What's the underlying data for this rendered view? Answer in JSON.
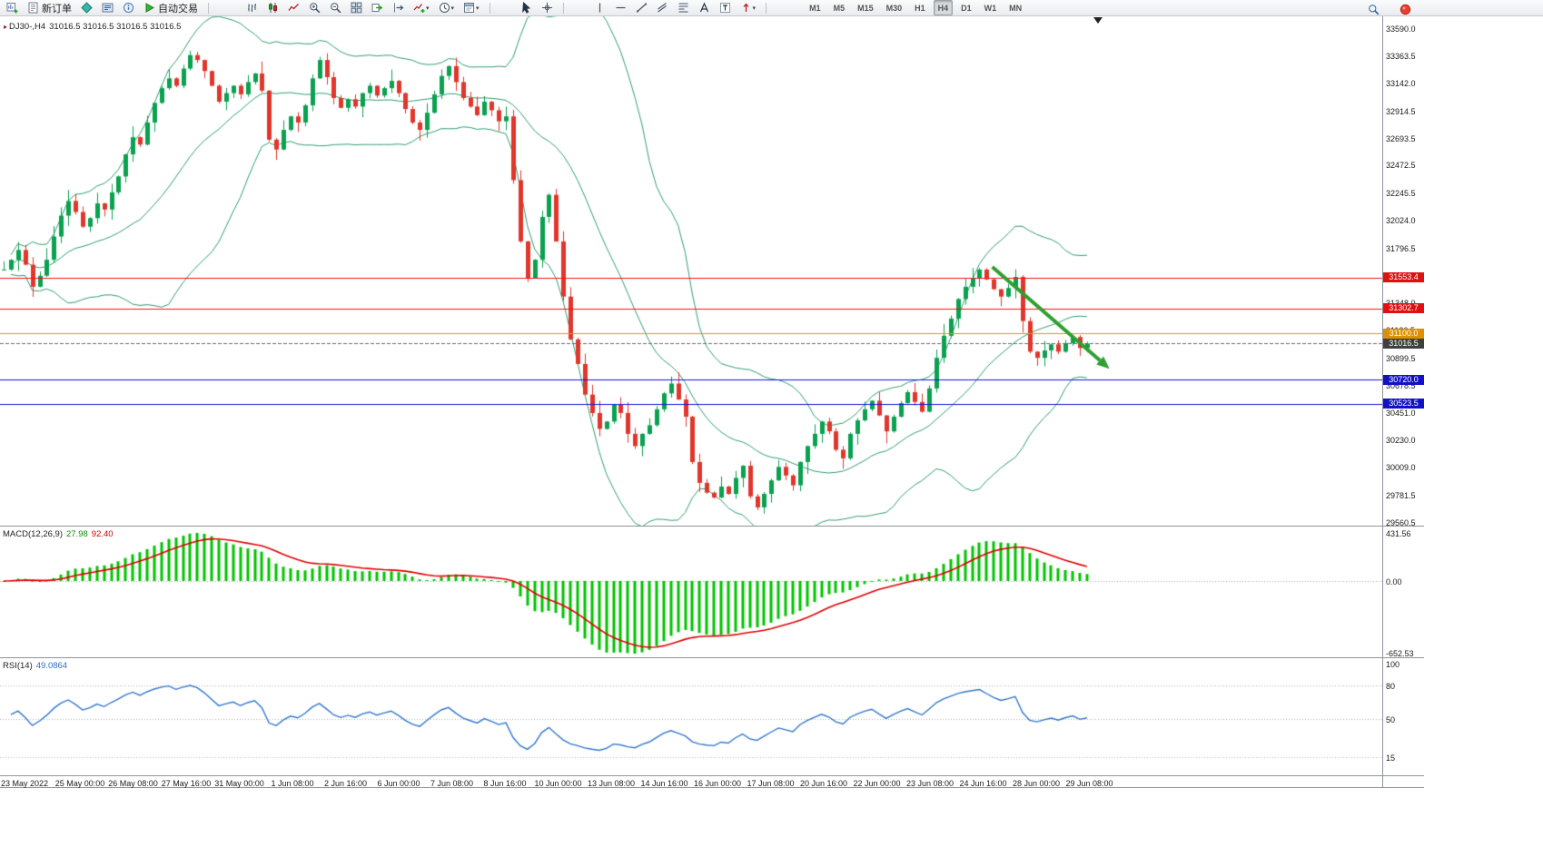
{
  "toolbar": {
    "groups": [
      {
        "name": "standard",
        "items": [
          {
            "name": "new-chart-button",
            "icon": "chart-plus-icon"
          },
          {
            "name": "new-order-button",
            "icon": "order-icon",
            "label": "新订单"
          },
          {
            "name": "metaeditor-button",
            "icon": "diamond-icon"
          },
          {
            "name": "market-watch-button",
            "icon": "quotes-icon"
          },
          {
            "name": "data-window-button",
            "icon": "info-icon"
          },
          {
            "name": "auto-trading-button",
            "icon": "play-icon",
            "label": "自动交易"
          }
        ]
      },
      {
        "name": "charts",
        "items": [
          {
            "name": "bar-chart-button",
            "icon": "bars-icon"
          },
          {
            "name": "candlestick-chart-button",
            "icon": "candles-icon"
          },
          {
            "name": "line-chart-button",
            "icon": "linechart-icon"
          },
          {
            "name": "zoom-in-button",
            "icon": "zoom-in-icon"
          },
          {
            "name": "zoom-out-button",
            "icon": "zoom-out-icon"
          },
          {
            "name": "tile-windows-button",
            "icon": "tile-icon"
          },
          {
            "name": "auto-scroll-button",
            "icon": "autoscroll-icon"
          },
          {
            "name": "chart-shift-button",
            "icon": "shift-icon"
          },
          {
            "name": "indicators-button",
            "icon": "indicator-plus-icon",
            "dropdown": true
          },
          {
            "name": "periods-button",
            "icon": "clock-icon",
            "dropdown": true
          },
          {
            "name": "templates-button",
            "icon": "template-icon",
            "dropdown": true
          }
        ]
      },
      {
        "name": "cursor",
        "items": [
          {
            "name": "cursor-button",
            "icon": "cursor-icon"
          },
          {
            "name": "crosshair-button",
            "icon": "crosshair-icon"
          }
        ]
      },
      {
        "name": "line-studies",
        "items": [
          {
            "name": "vertical-line-button",
            "icon": "vline-icon"
          },
          {
            "name": "horizontal-line-button",
            "icon": "hline-icon"
          },
          {
            "name": "trendline-button",
            "icon": "trendline-icon"
          },
          {
            "name": "equidistant-channel-button",
            "icon": "channel-icon"
          },
          {
            "name": "fibonacci-button",
            "icon": "fibo-icon"
          },
          {
            "name": "text-button",
            "icon": "text-a-icon"
          },
          {
            "name": "text-label-button",
            "icon": "text-t-icon"
          },
          {
            "name": "arrows-button",
            "icon": "arrows-icon",
            "dropdown": true
          }
        ]
      },
      {
        "name": "timeframes",
        "items": [
          {
            "name": "timeframe-m1-button",
            "label": "M1"
          },
          {
            "name": "timeframe-m5-button",
            "label": "M5"
          },
          {
            "name": "timeframe-m15-button",
            "label": "M15"
          },
          {
            "name": "timeframe-m30-button",
            "label": "M30"
          },
          {
            "name": "timeframe-h1-button",
            "label": "H1"
          },
          {
            "name": "timeframe-h4-button",
            "label": "H4",
            "active": true
          },
          {
            "name": "timeframe-d1-button",
            "label": "D1"
          },
          {
            "name": "timeframe-w1-button",
            "label": "W1"
          },
          {
            "name": "timeframe-mn-button",
            "label": "MN"
          }
        ]
      }
    ],
    "right_items": [
      {
        "name": "search-button",
        "icon": "magnifier-icon"
      },
      {
        "name": "alert-button",
        "icon": "red-dot-icon"
      }
    ]
  },
  "chart": {
    "symbol_marker": "▸",
    "symbol": "DJ30-,H4",
    "ohlc": "31016.5 31016.5 31016.5 31016.5",
    "axis": {
      "top_price": 33590.0,
      "top_y": 14,
      "bottom_price": 29560.5,
      "bottom_y": 558
    },
    "y_ticks": [
      "33590.0",
      "33363.5",
      "33142.0",
      "32914.5",
      "32693.5",
      "32472.5",
      "32245.5",
      "32024.0",
      "31796.5",
      "31575.0",
      "31348.0",
      "31126.5",
      "30899.5",
      "30678.5",
      "30451.0",
      "30230.0",
      "30009.0",
      "29781.5",
      "29560.5"
    ],
    "x_labels": [
      "23 May 2022",
      "25 May 00:00",
      "26 May 08:00",
      "27 May 16:00",
      "31 May 00:00",
      "1 Jun 08:00",
      "2 Jun 16:00",
      "6 Jun 00:00",
      "7 Jun 08:00",
      "8 Jun 16:00",
      "10 Jun 00:00",
      "13 Jun 08:00",
      "14 Jun 16:00",
      "16 Jun 00:00",
      "17 Jun 08:00",
      "20 Jun 16:00",
      "22 Jun 00:00",
      "23 Jun 08:00",
      "24 Jun 16:00",
      "28 Jun 00:00",
      "29 Jun 08:00"
    ]
  },
  "chart_data": {
    "type": "candlestick",
    "symbol": "DJ30-",
    "timeframe": "H4",
    "up_color": "#0aa14f",
    "down_color": "#e0362c",
    "closes": [
      31620,
      31700,
      31780,
      31660,
      31480,
      31570,
      31700,
      31890,
      32060,
      32180,
      32090,
      31970,
      32040,
      32160,
      32110,
      32250,
      32380,
      32560,
      32700,
      32640,
      32820,
      32980,
      33100,
      33180,
      33120,
      33260,
      33370,
      33330,
      33240,
      33120,
      32990,
      33060,
      33120,
      33050,
      33150,
      33220,
      33080,
      32680,
      32600,
      32760,
      32870,
      32820,
      32960,
      33180,
      33330,
      33190,
      33020,
      32940,
      33010,
      32950,
      33060,
      33120,
      33040,
      33100,
      33160,
      33060,
      32930,
      32820,
      32760,
      32900,
      33050,
      33200,
      33280,
      33150,
      33020,
      32950,
      32880,
      32990,
      32920,
      32830,
      32870,
      32350,
      31850,
      31550,
      31700,
      32050,
      32230,
      31850,
      31400,
      31050,
      30850,
      30600,
      30450,
      30320,
      30380,
      30520,
      30450,
      30280,
      30180,
      30280,
      30350,
      30480,
      30610,
      30690,
      30560,
      30420,
      30050,
      29880,
      29800,
      29760,
      29850,
      29790,
      29920,
      30020,
      29770,
      29680,
      29790,
      29900,
      30010,
      29940,
      29860,
      30050,
      30180,
      30280,
      30380,
      30300,
      30150,
      30080,
      30280,
      30390,
      30480,
      30550,
      30430,
      30300,
      30420,
      30530,
      30620,
      30540,
      30460,
      30650,
      30900,
      31080,
      31220,
      31380,
      31480,
      31550,
      31620,
      31540,
      31460,
      31400,
      31470,
      31560,
      31200,
      30950,
      30900,
      30960,
      31010,
      30950,
      31020,
      31070,
      30980,
      31016.5
    ],
    "bollinger": {
      "period": 20,
      "deviation": 2,
      "color": "#2e9e6f"
    },
    "horizontal_lines": [
      {
        "price": 31553.4,
        "label": "31553.4",
        "color": "#f01212",
        "tag_bg": "#e01010"
      },
      {
        "price": 31302.7,
        "label": "31302.7",
        "color": "#f01212",
        "tag_bg": "#e01010"
      },
      {
        "price": 31100.0,
        "label": "31100.0",
        "color": "#e69500",
        "tag_bg": "#dd9000"
      },
      {
        "price": 30720.0,
        "label": "30720.0",
        "color": "#1414dc",
        "tag_bg": "#1212c4"
      },
      {
        "price": 30523.5,
        "label": "30523.5",
        "color": "#1414dc",
        "tag_bg": "#1212c4"
      }
    ],
    "current_price": {
      "price": 31016.5,
      "label": "31016.5",
      "color": "#6a6a6a",
      "tag_bg": "#3f3f3f"
    },
    "trend_arrow": {
      "from_index": 137.8,
      "from_price": 31642,
      "to_index": 152.8,
      "to_price": 30879,
      "color": "#2f9e2f"
    },
    "macd": {
      "label": "MACD(12,26,9)",
      "main_value": "27.98",
      "signal_value": "92.40",
      "scale_max": 431.56,
      "scale_min": -652.53,
      "axis_labels": [
        "431.56",
        "0.00",
        "-652.53"
      ],
      "histogram_color": "#00c400",
      "signal_color": "#e00000"
    },
    "rsi": {
      "label": "RSI(14)",
      "value": "49.0864",
      "levels": [
        80,
        50,
        15
      ],
      "axis_labels": [
        "100",
        "80",
        "50",
        "15"
      ],
      "color": "#3377cc"
    }
  }
}
